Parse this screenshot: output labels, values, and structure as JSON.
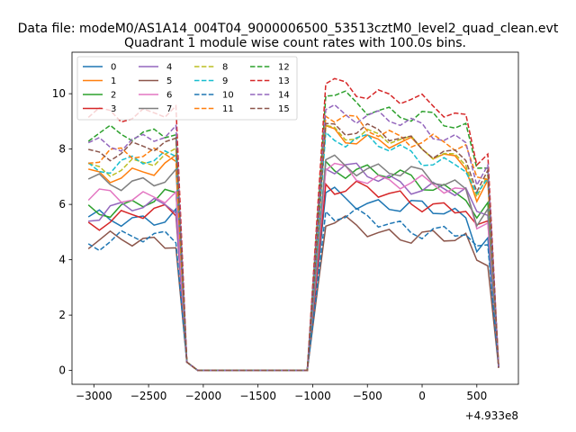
{
  "suptitle": "Data file: modeM0/AS1A14_004T04_9000006500_53513cztM0_level2_quad_clean.evt",
  "chart_data": {
    "type": "line",
    "title": "Quadrant 1 module wise count rates with 100.0s bins.",
    "xlabel": "",
    "ylabel": "",
    "x_offset_label": "+4.933e8",
    "xlim": [
      -3200,
      880
    ],
    "ylim": [
      -0.5,
      11.5
    ],
    "xticks": [
      -3000,
      -2500,
      -2000,
      -1500,
      -1000,
      -500,
      0,
      500
    ],
    "yticks": [
      0,
      2,
      4,
      6,
      8,
      10
    ],
    "grid": false,
    "legend": {
      "placement": "top-left",
      "columns": 4
    },
    "x": [
      -3050,
      -2950,
      -2850,
      -2750,
      -2650,
      -2550,
      -2450,
      -2350,
      -2250,
      -2150,
      -2050,
      -1950,
      -1850,
      -1750,
      -1650,
      -1550,
      -1450,
      -1350,
      -1250,
      -1150,
      -1050,
      -950,
      -880,
      -800,
      -700,
      -600,
      -500,
      -400,
      -300,
      -200,
      -100,
      0,
      100,
      200,
      300,
      400,
      500,
      600,
      700
    ],
    "series": [
      {
        "name": "0",
        "color": "#1f77b4",
        "dashed": false,
        "start": 5.4,
        "level": 6.0
      },
      {
        "name": "1",
        "color": "#ff7f0e",
        "dashed": false,
        "start": 7.0,
        "level": 8.2
      },
      {
        "name": "2",
        "color": "#2ca02c",
        "dashed": false,
        "start": 5.8,
        "level": 7.0
      },
      {
        "name": "3",
        "color": "#d62728",
        "dashed": false,
        "start": 5.4,
        "level": 6.3
      },
      {
        "name": "4",
        "color": "#9467bd",
        "dashed": false,
        "start": 5.6,
        "level": 6.9
      },
      {
        "name": "5",
        "color": "#8c564b",
        "dashed": false,
        "start": 4.6,
        "level": 5.0
      },
      {
        "name": "6",
        "color": "#e377c2",
        "dashed": false,
        "start": 6.2,
        "level": 6.9
      },
      {
        "name": "7",
        "color": "#7f7f7f",
        "dashed": false,
        "start": 6.8,
        "level": 7.2
      },
      {
        "name": "8",
        "color": "#bcbd22",
        "dashed": true,
        "start": 7.3,
        "level": 8.3
      },
      {
        "name": "9",
        "color": "#17becf",
        "dashed": true,
        "start": 7.4,
        "level": 8.0
      },
      {
        "name": "10",
        "color": "#1f77b4",
        "dashed": true,
        "start": 4.6,
        "level": 5.3
      },
      {
        "name": "11",
        "color": "#ff7f0e",
        "dashed": true,
        "start": 7.6,
        "level": 8.6
      },
      {
        "name": "12",
        "color": "#2ca02c",
        "dashed": true,
        "start": 8.4,
        "level": 9.4
      },
      {
        "name": "13",
        "color": "#d62728",
        "dashed": true,
        "start": 9.2,
        "level": 9.9
      },
      {
        "name": "14",
        "color": "#9467bd",
        "dashed": true,
        "start": 8.2,
        "level": 9.0
      },
      {
        "name": "15",
        "color": "#8c564b",
        "dashed": true,
        "start": 7.9,
        "level": 8.4
      }
    ]
  }
}
